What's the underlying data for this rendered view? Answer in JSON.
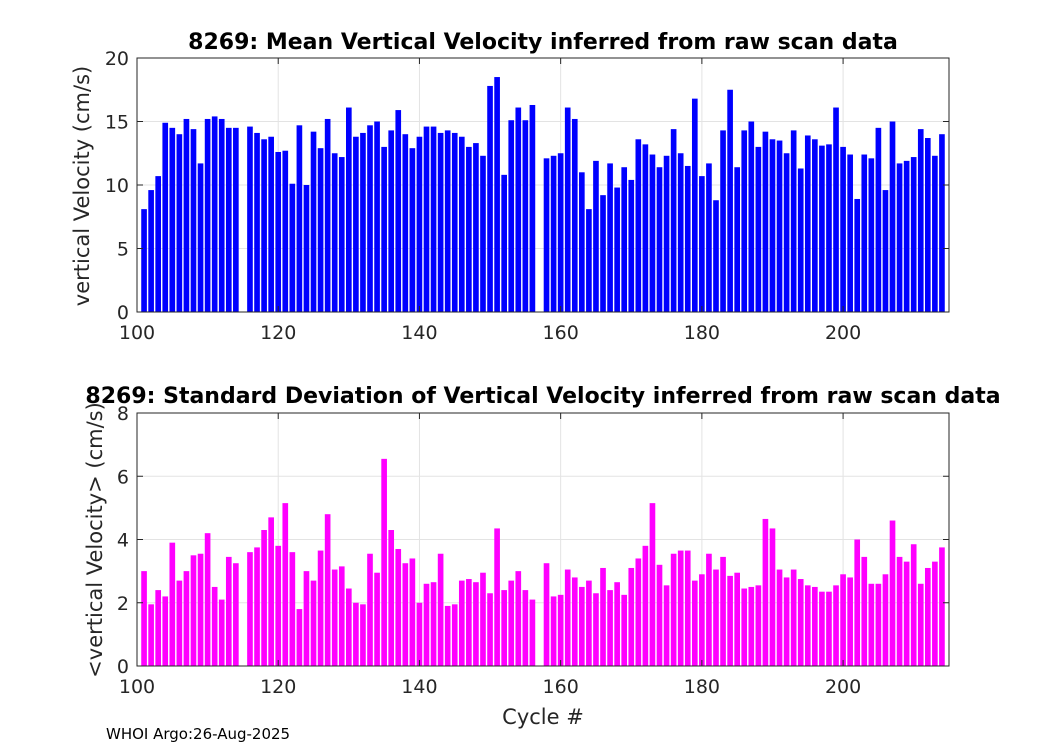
{
  "chart_data": [
    {
      "type": "bar",
      "title": "8269: Mean Vertical Velocity inferred from raw scan data",
      "xlabel": "",
      "ylabel": "vertical Velocity (cm/s)",
      "xlim": [
        100,
        215
      ],
      "ylim": [
        0,
        20
      ],
      "xticks": [
        100,
        120,
        140,
        160,
        180,
        200
      ],
      "yticks": [
        0,
        5,
        10,
        15,
        20
      ],
      "grid": true,
      "color": "#0000ff",
      "x": [
        101,
        102,
        103,
        104,
        105,
        106,
        107,
        108,
        109,
        110,
        111,
        112,
        113,
        114,
        116,
        117,
        118,
        119,
        120,
        121,
        122,
        123,
        124,
        125,
        126,
        127,
        128,
        129,
        130,
        131,
        132,
        133,
        134,
        135,
        136,
        137,
        138,
        139,
        140,
        141,
        142,
        143,
        144,
        145,
        146,
        147,
        148,
        149,
        150,
        151,
        152,
        153,
        154,
        155,
        156,
        158,
        159,
        160,
        161,
        162,
        163,
        164,
        165,
        166,
        167,
        168,
        169,
        170,
        171,
        172,
        173,
        174,
        175,
        176,
        177,
        178,
        179,
        180,
        181,
        182,
        183,
        184,
        185,
        186,
        187,
        188,
        189,
        190,
        191,
        192,
        193,
        194,
        195,
        196,
        197,
        198,
        199,
        200,
        201,
        202,
        203,
        204,
        205,
        206,
        207,
        208,
        209,
        210,
        211,
        212,
        213,
        214
      ],
      "values": [
        8.1,
        9.6,
        10.7,
        14.9,
        14.5,
        14.0,
        15.2,
        14.4,
        11.7,
        15.2,
        15.4,
        15.2,
        14.5,
        14.5,
        14.6,
        14.1,
        13.6,
        13.8,
        12.6,
        12.7,
        10.1,
        14.7,
        10.0,
        14.2,
        12.9,
        15.2,
        12.5,
        12.2,
        16.1,
        13.8,
        14.1,
        14.7,
        15.0,
        13.0,
        14.3,
        15.9,
        14.0,
        12.9,
        13.8,
        14.6,
        14.6,
        14.1,
        14.3,
        14.1,
        13.8,
        13.0,
        13.3,
        12.3,
        17.8,
        18.5,
        10.8,
        15.1,
        16.1,
        15.1,
        16.3,
        12.1,
        12.3,
        12.5,
        16.1,
        15.2,
        11.0,
        8.1,
        11.9,
        9.2,
        11.7,
        9.8,
        11.4,
        10.4,
        13.6,
        13.2,
        12.4,
        11.4,
        12.3,
        14.4,
        12.5,
        11.5,
        16.8,
        10.7,
        11.7,
        8.8,
        14.3,
        17.5,
        11.4,
        14.3,
        15.0,
        13.0,
        14.2,
        13.6,
        13.5,
        12.5,
        14.3,
        11.3,
        13.9,
        13.6,
        13.1,
        13.2,
        16.1,
        13.0,
        12.4,
        8.9,
        12.4,
        12.1,
        14.5,
        9.6,
        15.0,
        11.7,
        11.9,
        12.2,
        14.4,
        13.7,
        12.3,
        14.0
      ]
    },
    {
      "type": "bar",
      "title": "8269: Standard Deviation of Vertical Velocity inferred from raw scan data",
      "xlabel": "Cycle #",
      "ylabel": "<vertical Velocity> (cm/s)",
      "xlim": [
        100,
        215
      ],
      "ylim": [
        0,
        8
      ],
      "xticks": [
        100,
        120,
        140,
        160,
        180,
        200
      ],
      "yticks": [
        0,
        2,
        4,
        6,
        8
      ],
      "grid": true,
      "color": "#ff00ff",
      "x": [
        101,
        102,
        103,
        104,
        105,
        106,
        107,
        108,
        109,
        110,
        111,
        112,
        113,
        114,
        116,
        117,
        118,
        119,
        120,
        121,
        122,
        123,
        124,
        125,
        126,
        127,
        128,
        129,
        130,
        131,
        132,
        133,
        134,
        135,
        136,
        137,
        138,
        139,
        140,
        141,
        142,
        143,
        144,
        145,
        146,
        147,
        148,
        149,
        150,
        151,
        152,
        153,
        154,
        155,
        156,
        158,
        159,
        160,
        161,
        162,
        163,
        164,
        165,
        166,
        167,
        168,
        169,
        170,
        171,
        172,
        173,
        174,
        175,
        176,
        177,
        178,
        179,
        180,
        181,
        182,
        183,
        184,
        185,
        186,
        187,
        188,
        189,
        190,
        191,
        192,
        193,
        194,
        195,
        196,
        197,
        198,
        199,
        200,
        201,
        202,
        203,
        204,
        205,
        206,
        207,
        208,
        209,
        210,
        211,
        212,
        213,
        214
      ],
      "values": [
        3.0,
        1.95,
        2.4,
        2.2,
        3.9,
        2.7,
        3.0,
        3.5,
        3.55,
        4.2,
        2.5,
        2.1,
        3.45,
        3.25,
        3.6,
        3.75,
        4.3,
        4.7,
        3.8,
        5.15,
        3.6,
        1.8,
        3.0,
        2.7,
        3.65,
        4.8,
        3.05,
        3.15,
        2.45,
        2.0,
        1.95,
        3.55,
        2.95,
        6.55,
        4.3,
        3.7,
        3.25,
        3.4,
        2.0,
        2.6,
        2.65,
        3.55,
        1.9,
        1.95,
        2.7,
        2.75,
        2.65,
        2.95,
        2.3,
        4.35,
        2.4,
        2.7,
        3.0,
        2.4,
        2.1,
        3.25,
        2.2,
        2.25,
        3.05,
        2.8,
        2.5,
        2.7,
        2.3,
        3.1,
        2.4,
        2.65,
        2.25,
        3.1,
        3.4,
        3.8,
        5.15,
        3.2,
        2.55,
        3.55,
        3.65,
        3.65,
        2.7,
        2.9,
        3.55,
        3.05,
        3.45,
        2.85,
        2.95,
        2.45,
        2.5,
        2.55,
        4.65,
        4.35,
        3.05,
        2.8,
        3.05,
        2.75,
        2.55,
        2.5,
        2.35,
        2.35,
        2.55,
        2.9,
        2.8,
        4.0,
        3.45,
        2.6,
        2.6,
        2.9,
        4.6,
        3.45,
        3.3,
        3.85,
        2.6,
        3.1,
        3.3,
        3.75
      ]
    }
  ],
  "footer": {
    "label": "WHOI Argo:26-Aug-2025"
  }
}
